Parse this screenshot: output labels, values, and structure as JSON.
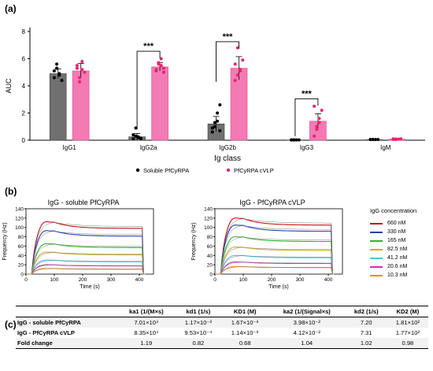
{
  "panels": {
    "a": "(a)",
    "b": "(b)",
    "c": "(c)"
  },
  "colors": {
    "soluble_bar": "#707070",
    "cvlp_bar": "#f47ab3",
    "cvlp_dot": "#e8246f"
  },
  "chart_data": [
    {
      "type": "bar",
      "categories": [
        "IgG1",
        "IgG2a",
        "IgG2b",
        "IgG3",
        "IgM"
      ],
      "xlabel": "Ig class",
      "ylabel": "AUC",
      "ylim": [
        0,
        8
      ],
      "yticks": [
        0,
        2,
        4,
        6,
        8
      ],
      "legend_position": "bottom",
      "series": [
        {
          "name": "Soluble PfCyRPA",
          "values": [
            4.9,
            0.25,
            1.2,
            0.02,
            0.05
          ],
          "errors": [
            0.35,
            0.25,
            0.55,
            0.02,
            0.02
          ],
          "points": [
            [
              4.6,
              5.3,
              4.9,
              4.4,
              5.1,
              5.6,
              4.8
            ],
            [
              0.1,
              0.3,
              0.2,
              0.15,
              0.4,
              0.9,
              0.25,
              0.1
            ],
            [
              0.6,
              1.3,
              2.0,
              2.6,
              0.9,
              1.0,
              1.4,
              0.7
            ],
            [
              0.02,
              0.02,
              0.02,
              0.02,
              0.02,
              0.02
            ],
            [
              0.05,
              0.05,
              0.05,
              0.05,
              0.05,
              0.05
            ]
          ]
        },
        {
          "name": "PfCyRPA cVLP",
          "values": [
            5.1,
            5.4,
            5.3,
            1.4,
            0.08
          ],
          "errors": [
            0.55,
            0.3,
            0.85,
            0.55,
            0.03
          ],
          "points": [
            [
              5.5,
              4.3,
              5.8,
              5.0,
              5.3,
              4.6,
              5.2
            ],
            [
              5.1,
              5.6,
              6.0,
              5.3,
              5.2,
              5.7,
              5.5,
              5.0
            ],
            [
              4.4,
              6.8,
              5.2,
              5.9,
              5.6,
              4.8,
              5.1
            ],
            [
              0.3,
              0.8,
              1.3,
              2.2,
              2.5,
              1.0,
              1.6
            ],
            [
              0.1,
              0.05,
              0.08,
              0.1,
              0.06,
              0.09
            ]
          ]
        }
      ],
      "annotations": [
        "***",
        "***",
        "***"
      ]
    },
    {
      "type": "line",
      "title": "IgG - soluble PfCyRPA",
      "xlabel": "Time (s)",
      "ylabel": "Frequency (Hz)",
      "xlim": [
        0,
        450
      ],
      "ylim": [
        0,
        140
      ],
      "xticks": [
        0,
        100,
        200,
        300,
        400
      ],
      "yticks": [
        0,
        20,
        40,
        60,
        80,
        100,
        120,
        140
      ],
      "series": [
        {
          "name": "660 nM",
          "color": "#c0141a",
          "plateau": 112
        },
        {
          "name": "330 nM",
          "color": "#2340b8",
          "plateau": 93
        },
        {
          "name": "165 nM",
          "color": "#2db52d",
          "plateau": 65
        },
        {
          "name": "82.5 nM",
          "color": "#d4a92c",
          "plateau": 47
        },
        {
          "name": "41.2 nM",
          "color": "#3fcce0",
          "plateau": 30
        },
        {
          "name": "20.6 nM",
          "color": "#d12ec7",
          "plateau": 20
        },
        {
          "name": "10.3 nM",
          "color": "#f08a1e",
          "plateau": 12
        }
      ]
    },
    {
      "type": "line",
      "title": "IgG - PfCyRPA cVLP",
      "xlabel": "Time (s)",
      "ylabel": "Frequency (Hz)",
      "xlim": [
        0,
        450
      ],
      "ylim": [
        0,
        140
      ],
      "xticks": [
        0,
        100,
        200,
        300,
        400
      ],
      "yticks": [
        0,
        20,
        40,
        60,
        80,
        100,
        120,
        140
      ],
      "series": [
        {
          "name": "660 nM",
          "color": "#c0141a",
          "plateau": 120
        },
        {
          "name": "330 nM",
          "color": "#2340b8",
          "plateau": 105
        },
        {
          "name": "165 nM",
          "color": "#2db52d",
          "plateau": 80
        },
        {
          "name": "82.5 nM",
          "color": "#d4a92c",
          "plateau": 58
        },
        {
          "name": "41.2 nM",
          "color": "#3fcce0",
          "plateau": 40
        },
        {
          "name": "20.6 nM",
          "color": "#d12ec7",
          "plateau": 26
        },
        {
          "name": "10.3 nM",
          "color": "#f08a1e",
          "plateau": 16
        }
      ]
    },
    {
      "type": "table",
      "columns": [
        "",
        "ka1 (1/(M×s)",
        "kd1 (1/s)",
        "KD1 (M)",
        "ka2 (1/(Signal×s)",
        "kd2 (1/s)",
        "KD2 (M)"
      ],
      "rows": [
        [
          "IgG - soluble PfCyRPA",
          "7.01×10⁴",
          "1.17×10⁻³",
          "1.67×10⁻⁸",
          "3.98×10⁻²",
          "7.20",
          "1.81×10²"
        ],
        [
          "IgG - PfCyRPA cVLP",
          "8.35×10⁴",
          "9.53×10⁻⁴",
          "1.14×10⁻⁸",
          "4.12×10⁻²",
          "7.31",
          "1.77×10²"
        ],
        [
          "Fold change",
          "1.19",
          "0.82",
          "0.68",
          "1.04",
          "1.02",
          "0.98"
        ]
      ]
    }
  ],
  "legend_title": "IgG concentration"
}
